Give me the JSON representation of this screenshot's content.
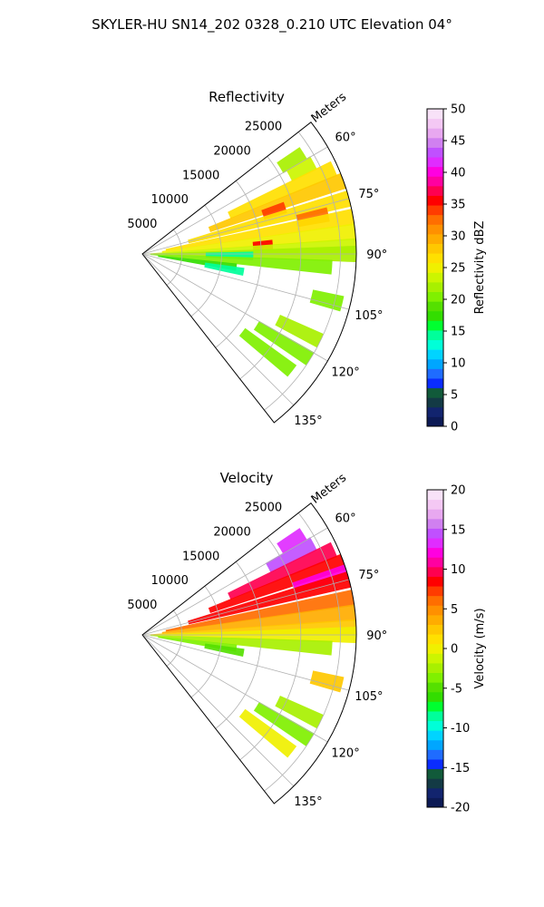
{
  "title": "SKYLER-HU  SN14_202  0328_0.210 UTC Elevation 04°",
  "chart_data": [
    {
      "type": "heatmap",
      "projection": "polar-sector",
      "title": "Reflectivity",
      "range_axis_label": "Meters",
      "range_ticks": [
        5000,
        10000,
        15000,
        20000,
        25000
      ],
      "range_tick_labels": [
        "5000",
        "10000",
        "15000",
        "20000",
        "25000"
      ],
      "azimuth_range_deg": [
        52,
        142
      ],
      "azimuth_ticks": [
        60,
        75,
        90,
        105,
        120,
        135
      ],
      "azimuth_tick_labels": [
        "60°",
        "75°",
        "90°",
        "105°",
        "120°",
        "135°"
      ],
      "grid": true,
      "colorbar": {
        "label": "Reflectivity dBZ",
        "min": 0,
        "max": 50,
        "ticks": [
          0,
          5,
          10,
          15,
          20,
          25,
          30,
          35,
          40,
          45,
          50
        ],
        "tick_labels": [
          "0",
          "5",
          "10",
          "15",
          "20",
          "25",
          "30",
          "35",
          "40",
          "45",
          "50"
        ],
        "colors": [
          "#0c1a55",
          "#12246e",
          "#133a45",
          "#115a3a",
          "#0a2cff",
          "#1f6cff",
          "#00a6ff",
          "#00d4ff",
          "#00ffd8",
          "#00ff9a",
          "#00ff30",
          "#33dd00",
          "#55e000",
          "#80f000",
          "#a8f000",
          "#ccf500",
          "#f0f000",
          "#ffe000",
          "#ffc800",
          "#ffac00",
          "#ff9000",
          "#ff6e00",
          "#ff3c00",
          "#ff0000",
          "#ff0050",
          "#ff00a0",
          "#ff00e0",
          "#e02cff",
          "#c050ff",
          "#d080f0",
          "#e8a8f0",
          "#f4c8f4",
          "#f8e2f8"
        ]
      },
      "echo_cells": [
        {
          "az": 58,
          "r0": 20500,
          "r1": 24000,
          "value": 22
        },
        {
          "az": 62,
          "r0": 21000,
          "r1": 24500,
          "value": 24
        },
        {
          "az": 66,
          "r0": 12000,
          "r1": 26500,
          "value": 26
        },
        {
          "az": 70,
          "r0": 9000,
          "r1": 27000,
          "value": 28
        },
        {
          "az": 72,
          "r0": 16000,
          "r1": 19000,
          "value": 34
        },
        {
          "az": 75,
          "r0": 6000,
          "r1": 27000,
          "value": 27
        },
        {
          "az": 78,
          "r0": 20000,
          "r1": 24000,
          "value": 32
        },
        {
          "az": 80,
          "r0": 3000,
          "r1": 27000,
          "value": 26
        },
        {
          "az": 84,
          "r0": 2500,
          "r1": 27000,
          "value": 25
        },
        {
          "az": 86,
          "r0": 14000,
          "r1": 16500,
          "value": 36
        },
        {
          "az": 88,
          "r0": 1000,
          "r1": 27000,
          "value": 23
        },
        {
          "az": 90,
          "r0": 500,
          "r1": 27000,
          "value": 22
        },
        {
          "az": 91,
          "r0": 8000,
          "r1": 14000,
          "value": 15
        },
        {
          "az": 94,
          "r0": 1000,
          "r1": 24000,
          "value": 20
        },
        {
          "az": 98,
          "r0": 2000,
          "r1": 12000,
          "value": 18
        },
        {
          "az": 100,
          "r0": 8000,
          "r1": 13000,
          "value": 14
        },
        {
          "az": 104,
          "r0": 22000,
          "r1": 26000,
          "value": 20
        },
        {
          "az": 116,
          "r0": 19000,
          "r1": 25000,
          "value": 22
        },
        {
          "az": 122,
          "r0": 17000,
          "r1": 25000,
          "value": 20
        },
        {
          "az": 128,
          "r0": 16000,
          "r1": 24000,
          "value": 21
        }
      ]
    },
    {
      "type": "heatmap",
      "projection": "polar-sector",
      "title": "Velocity",
      "range_axis_label": "Meters",
      "range_ticks": [
        5000,
        10000,
        15000,
        20000,
        25000
      ],
      "range_tick_labels": [
        "5000",
        "10000",
        "15000",
        "20000",
        "25000"
      ],
      "azimuth_range_deg": [
        52,
        142
      ],
      "azimuth_ticks": [
        60,
        75,
        90,
        105,
        120,
        135
      ],
      "azimuth_tick_labels": [
        "60°",
        "75°",
        "90°",
        "105°",
        "120°",
        "135°"
      ],
      "grid": true,
      "colorbar": {
        "label": "Velocity (m/s)",
        "min": -20,
        "max": 20,
        "ticks": [
          -20,
          -15,
          -10,
          -5,
          0,
          5,
          10,
          15,
          20
        ],
        "tick_labels": [
          "-20",
          "-15",
          "-10",
          "-5",
          "0",
          "5",
          "10",
          "15",
          "20"
        ],
        "colors": [
          "#0c1a55",
          "#12246e",
          "#133a45",
          "#115a3a",
          "#0a2cff",
          "#1f6cff",
          "#00a6ff",
          "#00d4ff",
          "#00ffd8",
          "#00ff9a",
          "#00ff30",
          "#33dd00",
          "#55e000",
          "#80f000",
          "#a8f000",
          "#ccf500",
          "#f0f000",
          "#ffe000",
          "#ffc800",
          "#ffac00",
          "#ff9000",
          "#ff6e00",
          "#ff3c00",
          "#ff0000",
          "#ff0050",
          "#ff00a0",
          "#ff00e0",
          "#e02cff",
          "#c050ff",
          "#d080f0",
          "#e8a8f0",
          "#f4c8f4",
          "#f8e2f8"
        ]
      },
      "echo_cells": [
        {
          "az": 58,
          "r0": 20500,
          "r1": 24000,
          "value": 13
        },
        {
          "az": 62,
          "r0": 18000,
          "r1": 24500,
          "value": 14
        },
        {
          "az": 66,
          "r0": 12000,
          "r1": 26500,
          "value": 10
        },
        {
          "az": 70,
          "r0": 9000,
          "r1": 27000,
          "value": 9
        },
        {
          "az": 73,
          "r0": 20000,
          "r1": 27000,
          "value": 12
        },
        {
          "az": 75,
          "r0": 6000,
          "r1": 27000,
          "value": 8
        },
        {
          "az": 80,
          "r0": 3000,
          "r1": 27000,
          "value": 6
        },
        {
          "az": 84,
          "r0": 2500,
          "r1": 27000,
          "value": 4
        },
        {
          "az": 88,
          "r0": 1000,
          "r1": 27000,
          "value": 2
        },
        {
          "az": 90,
          "r0": 500,
          "r1": 27000,
          "value": 0
        },
        {
          "az": 94,
          "r0": 1000,
          "r1": 24000,
          "value": -2
        },
        {
          "az": 98,
          "r0": 2000,
          "r1": 12000,
          "value": -4
        },
        {
          "az": 100,
          "r0": 8000,
          "r1": 13000,
          "value": -5
        },
        {
          "az": 104,
          "r0": 22000,
          "r1": 26000,
          "value": 2
        },
        {
          "az": 116,
          "r0": 19000,
          "r1": 25000,
          "value": -3
        },
        {
          "az": 122,
          "r0": 17000,
          "r1": 25000,
          "value": -4
        },
        {
          "az": 128,
          "r0": 16000,
          "r1": 24000,
          "value": 0
        }
      ]
    }
  ]
}
